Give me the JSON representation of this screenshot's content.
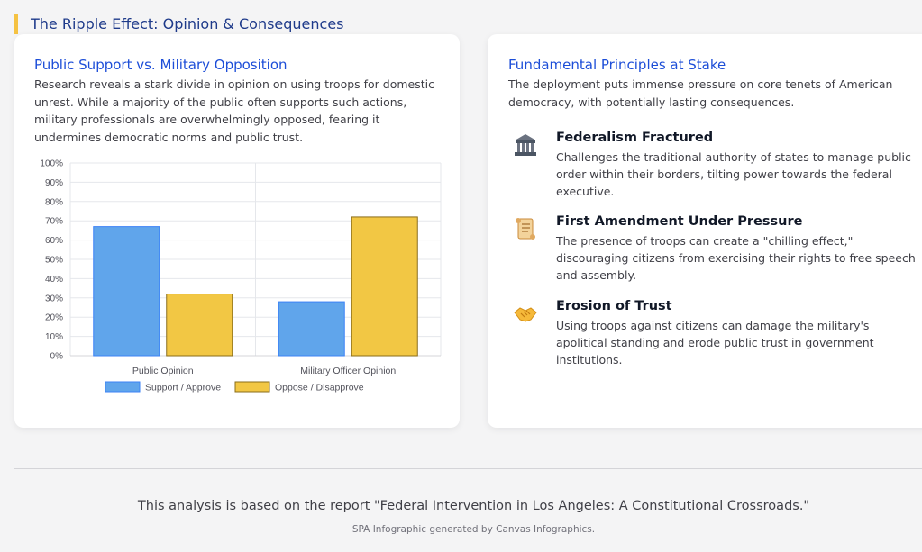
{
  "section_title": "The Ripple Effect: Opinion & Consequences",
  "left_card": {
    "title": "Public Support vs. Military Opposition",
    "description": "Research reveals a stark divide in opinion on using troops for domestic unrest. While a majority of the public often supports such actions, military professionals are overwhelmingly opposed, fearing it undermines democratic norms and public trust."
  },
  "chart_data": {
    "type": "bar",
    "categories": [
      "Public Opinion",
      "Military Officer Opinion"
    ],
    "series": [
      {
        "name": "Support / Approve",
        "values": [
          67,
          28
        ],
        "color": "#60a5eb",
        "border": "#3b82f6"
      },
      {
        "name": "Oppose / Disapprove",
        "values": [
          32,
          72
        ],
        "color": "#f2c744",
        "border": "#8a6d1a"
      }
    ],
    "ylim": [
      0,
      100
    ],
    "y_ticks": [
      "0%",
      "10%",
      "20%",
      "30%",
      "40%",
      "50%",
      "60%",
      "70%",
      "80%",
      "90%",
      "100%"
    ],
    "grid": true,
    "legend_position": "bottom"
  },
  "right_card": {
    "title": "Fundamental Principles at Stake",
    "description": "The deployment puts immense pressure on core tenets of American democracy, with potentially lasting consequences.",
    "principles": [
      {
        "icon": "classical-building-icon",
        "title": "Federalism Fractured",
        "text": "Challenges the traditional authority of states to manage public order within their borders, tilting power towards the federal executive."
      },
      {
        "icon": "scroll-icon",
        "title": "First Amendment Under Pressure",
        "text": "The presence of troops can create a \"chilling effect,\" discouraging citizens from exercising their rights to free speech and assembly."
      },
      {
        "icon": "handshake-icon",
        "title": "Erosion of Trust",
        "text": "Using troops against citizens can damage the military's apolitical standing and erode public trust in government institutions."
      }
    ]
  },
  "footer": {
    "main": "This analysis is based on the report \"Federal Intervention in Los Angeles: A Constitutional Crossroads.\"",
    "sub": "SPA Infographic generated by Canvas Infographics."
  }
}
